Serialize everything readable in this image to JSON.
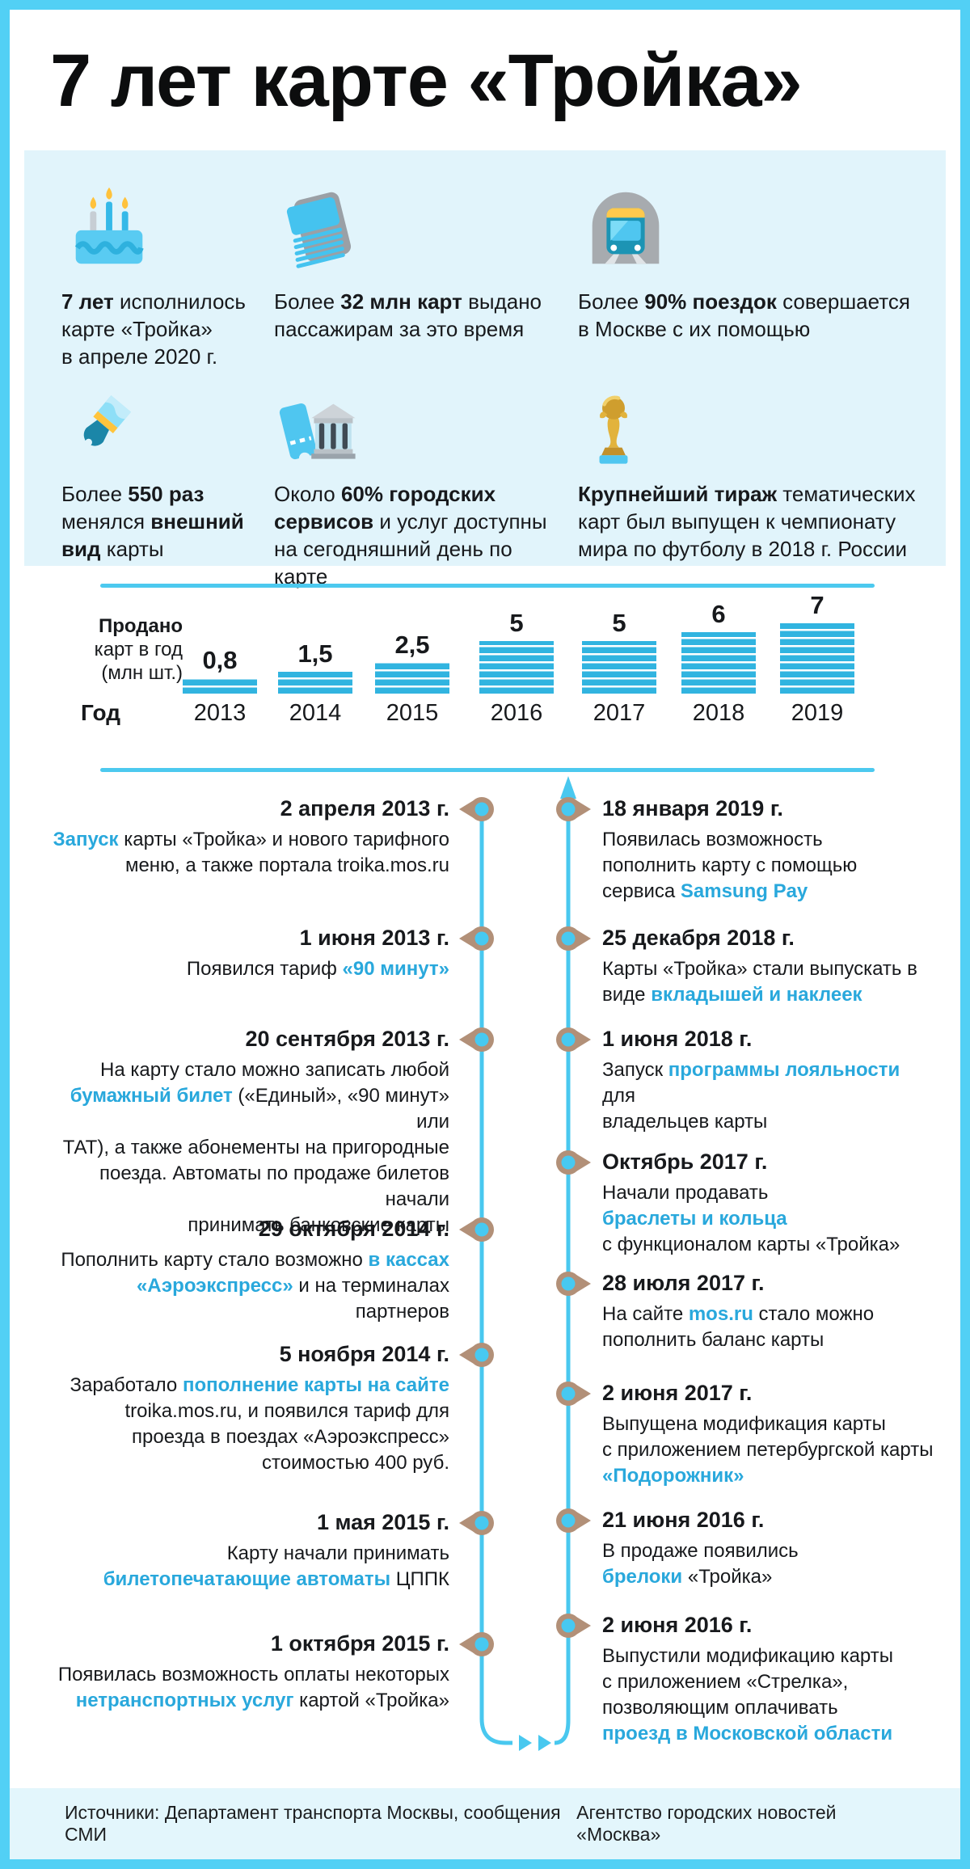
{
  "title": "7 лет карте «Тройка»",
  "colors": {
    "frame_cyan": "#52d0f5",
    "line_cyan": "#49c8ef",
    "bar_blue": "#31b4e0",
    "accent_link_blue": "#29a8dc",
    "marker_tan": "#b29078",
    "panel_bg": "#e1f4fb",
    "footer_bg": "#e3f6fc",
    "text_dark": "#17191c"
  },
  "stats": [
    {
      "icon": "birthday-cake-icon",
      "segments": [
        {
          "t": "7 лет",
          "b": true
        },
        {
          "t": " исполнилось\nкарте «Тройка»\nв апреле 2020 г."
        }
      ]
    },
    {
      "icon": "card-stack-icon",
      "segments": [
        {
          "t": "Более "
        },
        {
          "t": "32 млн карт",
          "b": true
        },
        {
          "t": " выдано\nпассажирам за это время"
        }
      ]
    },
    {
      "icon": "metro-train-icon",
      "segments": [
        {
          "t": "Более "
        },
        {
          "t": "90% поездок",
          "b": true
        },
        {
          "t": " совершается\nв Москве с их помощью"
        }
      ]
    },
    {
      "icon": "paintbrush-icon",
      "segments": [
        {
          "t": "Более "
        },
        {
          "t": "550 раз",
          "b": true
        },
        {
          "t": "\nменялся "
        },
        {
          "t": "внешний\nвид",
          "b": true
        },
        {
          "t": " карты"
        }
      ]
    },
    {
      "icon": "ticket-bank-icon",
      "segments": [
        {
          "t": "Около "
        },
        {
          "t": "60% городских\nсервисов",
          "b": true
        },
        {
          "t": " и услуг доступны\nна сегодняшний день по карте"
        }
      ]
    },
    {
      "icon": "trophy-icon",
      "segments": [
        {
          "t": "Крупнейший тираж",
          "b": true
        },
        {
          "t": " тематических\nкарт был выпущен к чемпионату\nмира по футболу в 2018 г. России"
        }
      ]
    }
  ],
  "chart_data": {
    "type": "bar",
    "title": "Продано карт в год (млн шт.)",
    "ylabel_lines": [
      "Продано",
      "карт в год",
      "(млн шт.)"
    ],
    "xlabel": "Год",
    "categories": [
      "2013",
      "2014",
      "2015",
      "2016",
      "2017",
      "2018",
      "2019"
    ],
    "values": [
      0.8,
      1.5,
      2.5,
      5,
      5,
      6,
      7
    ],
    "value_labels": [
      "0,8",
      "1,5",
      "2,5",
      "5",
      "5",
      "6",
      "7"
    ],
    "bar_style": "horizontal-striped",
    "grid": false,
    "legend": false
  },
  "timeline": {
    "left": [
      {
        "date": "2 апреля 2013 г.",
        "segments": [
          {
            "t": "Запуск",
            "a": true
          },
          {
            "t": " карты «Тройка» и нового тарифного\nменю, а также портала troika.mos.ru"
          }
        ]
      },
      {
        "date": "1 июня 2013 г.",
        "segments": [
          {
            "t": "Появился тариф "
          },
          {
            "t": "«90 минут»",
            "a": true
          }
        ]
      },
      {
        "date": "20 сентября 2013 г.",
        "segments": [
          {
            "t": "На карту стало можно записать любой\n"
          },
          {
            "t": "бумажный билет",
            "a": true
          },
          {
            "t": " («Единый», «90 минут» или\nТАТ), а также абонементы на пригородные\nпоезда. Автоматы по продаже билетов начали\nпринимать банковские карты"
          }
        ]
      },
      {
        "date": "29 октября 2014 г.",
        "segments": [
          {
            "t": "Пополнить карту стало возможно "
          },
          {
            "t": "в кассах\n«Аэроэкспресс»",
            "a": true
          },
          {
            "t": " и на терминалах партнеров"
          }
        ]
      },
      {
        "date": "5 ноября 2014 г.",
        "segments": [
          {
            "t": "Заработало "
          },
          {
            "t": "пополнение карты на сайте",
            "a": true
          },
          {
            "t": "\ntroika.mos.ru, и появился тариф для\nпроезда в поездах «Аэроэкспресс»\nстоимостью 400 руб."
          }
        ]
      },
      {
        "date": "1 мая 2015 г.",
        "segments": [
          {
            "t": "Карту начали принимать\n"
          },
          {
            "t": "билетопечатающие автоматы",
            "a": true
          },
          {
            "t": " ЦППК"
          }
        ]
      },
      {
        "date": "1 октября 2015 г.",
        "segments": [
          {
            "t": "Появилась возможность оплаты некоторых\n"
          },
          {
            "t": "нетранспортных услуг",
            "a": true
          },
          {
            "t": " картой «Тройка»"
          }
        ]
      }
    ],
    "right": [
      {
        "date": "18 января 2019 г.",
        "segments": [
          {
            "t": "Появилась возможность\nпополнить карту с помощью\nсервиса "
          },
          {
            "t": "Samsung Pay",
            "a": true
          }
        ]
      },
      {
        "date": "25 декабря 2018 г.",
        "segments": [
          {
            "t": "Карты «Тройка» стали выпускать в\nвиде "
          },
          {
            "t": "вкладышей и наклеек",
            "a": true
          }
        ]
      },
      {
        "date": "1 июня 2018 г.",
        "segments": [
          {
            "t": "Запуск "
          },
          {
            "t": "программы лояльности",
            "a": true
          },
          {
            "t": " для\nвладельцев карты"
          }
        ]
      },
      {
        "date": "Октябрь 2017 г.",
        "segments": [
          {
            "t": "Начали продавать\n"
          },
          {
            "t": "браслеты и кольца",
            "a": true
          },
          {
            "t": "\nс функционалом карты «Тройка»"
          }
        ]
      },
      {
        "date": "28 июля 2017 г.",
        "segments": [
          {
            "t": "На сайте "
          },
          {
            "t": "mos.ru",
            "a": true
          },
          {
            "t": " стало можно\nпополнить баланс карты"
          }
        ]
      },
      {
        "date": "2 июня 2017 г.",
        "segments": [
          {
            "t": "Выпущена модификация карты\nс приложением петербургской карты\n"
          },
          {
            "t": "«Подорожник»",
            "a": true
          }
        ]
      },
      {
        "date": "21 июня 2016 г.",
        "segments": [
          {
            "t": "В продаже появились\n"
          },
          {
            "t": "брелоки",
            "a": true
          },
          {
            "t": " «Тройка»"
          }
        ]
      },
      {
        "date": "2 июня 2016 г.",
        "segments": [
          {
            "t": "Выпустили модификацию карты\nс приложением «Стрелка»,\nпозволяющим оплачивать\n"
          },
          {
            "t": "проезд в Московской области",
            "a": true
          }
        ]
      }
    ]
  },
  "footer": {
    "left": "Источники: Департамент транспорта Москвы, сообщения СМИ",
    "right": "Агентство городских новостей «Москва»"
  }
}
